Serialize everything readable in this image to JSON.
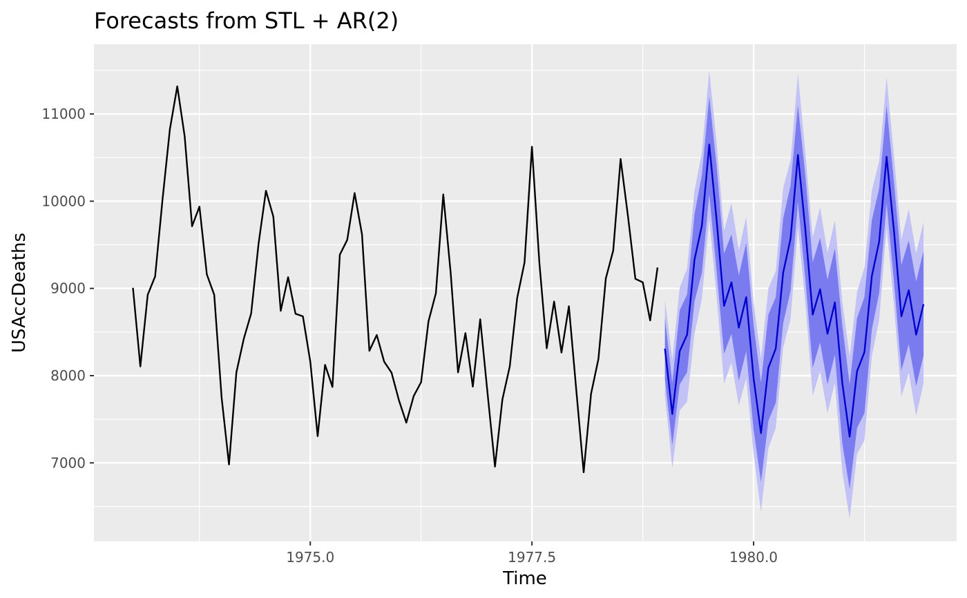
{
  "chart_data": {
    "type": "line",
    "title": "Forecasts from STL +  AR(2)",
    "xlabel": "Time",
    "ylabel": "USAccDeaths",
    "xlim": [
      1972.56,
      1982.29
    ],
    "ylim": [
      6100,
      11800
    ],
    "x_ticks": [
      1975.0,
      1977.5,
      1980.0
    ],
    "x_tick_labels": [
      "1975.0",
      "1977.5",
      "1980.0"
    ],
    "y_ticks": [
      7000,
      8000,
      9000,
      10000,
      11000
    ],
    "y_tick_labels": [
      "7000",
      "8000",
      "9000",
      "10000",
      "11000"
    ],
    "grid": true,
    "colors": {
      "panel": "#ebebeb",
      "grid": "#ffffff",
      "history": "#000000",
      "forecast": "#0000cc",
      "band80": "#7b7bf0",
      "band95": "#c2c2f7"
    },
    "history": {
      "start": 1973.0,
      "frequency": 12,
      "values": [
        9007,
        8106,
        8928,
        9137,
        10017,
        10826,
        11317,
        10744,
        9713,
        9938,
        9161,
        8927,
        7750,
        6981,
        8038,
        8422,
        8714,
        9512,
        10120,
        9823,
        8743,
        9129,
        8710,
        8680,
        8162,
        7306,
        8124,
        7870,
        9387,
        9556,
        10093,
        9620,
        8285,
        8466,
        8160,
        8034,
        7717,
        7461,
        7767,
        7925,
        8623,
        8945,
        10078,
        9179,
        8037,
        8488,
        7874,
        8647,
        7792,
        6957,
        7726,
        8106,
        8890,
        9299,
        10625,
        9302,
        8314,
        8850,
        8265,
        8796,
        7836,
        6892,
        7791,
        8192,
        9115,
        9434,
        10484,
        9827,
        9110,
        9070,
        8633,
        9240
      ]
    },
    "forecast": {
      "start": 1979.0,
      "frequency": 12,
      "mean": [
        8310,
        7560,
        8280,
        8470,
        9330,
        9720,
        10650,
        9780,
        8800,
        9070,
        8550,
        8900,
        7970,
        7340,
        8090,
        8310,
        9180,
        9570,
        10530,
        9680,
        8700,
        8990,
        8480,
        8840,
        7920,
        7300,
        8050,
        8270,
        9140,
        9540,
        10510,
        9660,
        8680,
        8980,
        8470,
        8820
      ],
      "lo80": [
        7960,
        7200,
        7900,
        8040,
        8850,
        9180,
        10080,
        9190,
        8250,
        8480,
        7940,
        8280,
        7380,
        6780,
        7480,
        7690,
        8600,
        8970,
        9990,
        9110,
        8090,
        8380,
        7900,
        8240,
        7230,
        6700,
        7400,
        7570,
        8530,
        8950,
        9980,
        9080,
        8060,
        8360,
        7880,
        8230
      ],
      "hi80": [
        8660,
        7920,
        8750,
        8930,
        9850,
        10300,
        11200,
        10400,
        9400,
        9620,
        9150,
        9520,
        8580,
        7920,
        8700,
        8900,
        9800,
        10180,
        11100,
        10300,
        9300,
        9580,
        9100,
        9460,
        8580,
        7900,
        8660,
        8900,
        9780,
        10150,
        11100,
        10220,
        9270,
        9550,
        9080,
        9430
      ],
      "lo95": [
        7770,
        6940,
        7600,
        7700,
        8480,
        8880,
        9800,
        8900,
        7910,
        8150,
        7660,
        7970,
        7100,
        6440,
        7170,
        7400,
        8320,
        8650,
        9700,
        8840,
        7770,
        8050,
        7570,
        7920,
        6900,
        6360,
        7100,
        7260,
        8220,
        8640,
        9710,
        8800,
        7760,
        8030,
        7540,
        7910
      ],
      "hi95": [
        8870,
        8190,
        9010,
        9230,
        10120,
        10560,
        11500,
        10660,
        9660,
        9980,
        9440,
        9820,
        8840,
        8200,
        9000,
        9200,
        10150,
        10470,
        11460,
        10560,
        9580,
        9930,
        9410,
        9780,
        8850,
        8220,
        8960,
        9240,
        10120,
        10460,
        11420,
        10520,
        9560,
        9910,
        9400,
        9760
      ]
    }
  }
}
